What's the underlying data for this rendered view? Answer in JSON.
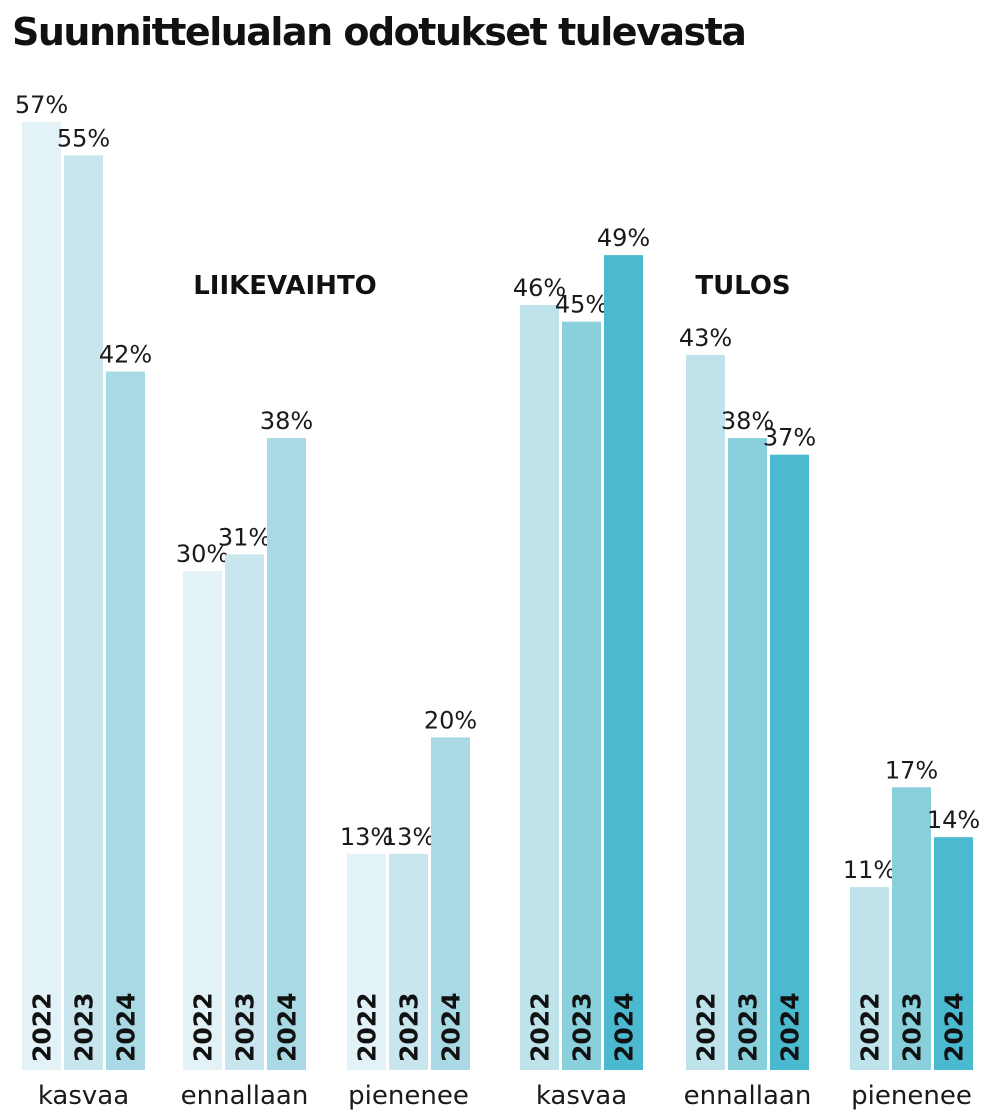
{
  "title": "Suunnittelualan odotukset tulevasta",
  "chart_data": {
    "type": "bar",
    "title": "Suunnittelualan odotukset tulevasta",
    "unit": "%",
    "ylim": [
      0,
      60
    ],
    "years": [
      "2022",
      "2023",
      "2024"
    ],
    "groups": [
      {
        "name": "LIIKEVAIHTO",
        "colors": [
          "#e2f2f6",
          "#c9e6ee",
          "#a9d9e4"
        ],
        "categories": [
          {
            "label": "kasvaa",
            "values": [
              57,
              55,
              42
            ]
          },
          {
            "label": "ennallaan",
            "values": [
              30,
              31,
              38
            ]
          },
          {
            "label": "pienenee",
            "values": [
              13,
              13,
              20
            ]
          }
        ]
      },
      {
        "name": "TULOS",
        "colors": [
          "#bfe3eb",
          "#89cfdc",
          "#4bb9cf"
        ],
        "categories": [
          {
            "label": "kasvaa",
            "values": [
              46,
              45,
              49
            ]
          },
          {
            "label": "ennallaan",
            "values": [
              43,
              38,
              37
            ]
          },
          {
            "label": "pienenee",
            "values": [
              11,
              17,
              14
            ]
          }
        ]
      }
    ]
  }
}
